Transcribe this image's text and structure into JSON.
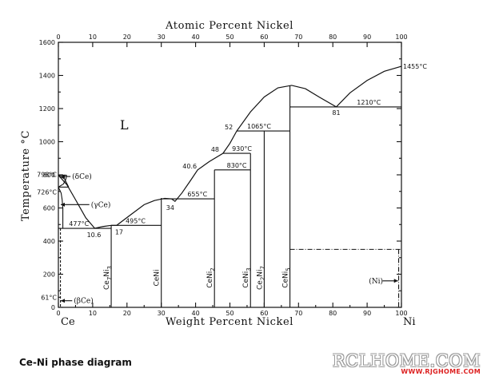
{
  "chart_data": {
    "type": "phase-diagram",
    "title": "",
    "x_top_label": "Atomic Percent Nickel",
    "x_top_ticks": [
      0,
      10,
      20,
      30,
      40,
      50,
      60,
      70,
      80,
      90,
      100
    ],
    "xlabel": "Weight Percent Nickel",
    "x_ticks": [
      0,
      10,
      20,
      30,
      40,
      50,
      60,
      70,
      80,
      90,
      100
    ],
    "ylabel": "Temperature °C",
    "y_ticks": [
      0,
      200,
      400,
      600,
      800,
      1000,
      1200,
      1400,
      1600
    ],
    "xlim": [
      0,
      100
    ],
    "ylim": [
      0,
      1600
    ],
    "grid": false,
    "endpoint_left": "Ce",
    "endpoint_right": "Ni",
    "liquid_label": "L",
    "liquidus": [
      [
        0,
        798
      ],
      [
        2.5,
        740
      ],
      [
        5,
        650
      ],
      [
        8,
        540
      ],
      [
        10.6,
        477
      ],
      [
        13,
        488
      ],
      [
        15.4,
        495
      ],
      [
        17,
        495
      ],
      [
        21,
        558
      ],
      [
        25,
        620
      ],
      [
        28,
        645
      ],
      [
        31,
        658
      ],
      [
        33,
        655
      ],
      [
        34,
        640
      ],
      [
        36,
        690
      ],
      [
        38.5,
        765
      ],
      [
        40.6,
        830
      ],
      [
        44,
        880
      ],
      [
        48,
        930
      ],
      [
        50,
        990
      ],
      [
        52,
        1065
      ],
      [
        56,
        1180
      ],
      [
        60,
        1270
      ],
      [
        64,
        1325
      ],
      [
        68,
        1340
      ],
      [
        72,
        1320
      ],
      [
        76,
        1270
      ],
      [
        81,
        1210
      ],
      [
        85,
        1295
      ],
      [
        90,
        1370
      ],
      [
        95,
        1425
      ],
      [
        100,
        1455
      ]
    ],
    "phase_boundaries": [
      {
        "points": [
          [
            0,
            798
          ],
          [
            1.8,
            775
          ],
          [
            3,
            726
          ]
        ]
      },
      {
        "points": [
          [
            0,
            726
          ],
          [
            0.8,
            690
          ],
          [
            1.1,
            650
          ],
          [
            1.3,
            600
          ],
          [
            1.3,
            477
          ]
        ]
      },
      {
        "points": [
          [
            0,
            726
          ],
          [
            1.5,
            745
          ],
          [
            2.2,
            775
          ],
          [
            2.4,
            798
          ]
        ]
      }
    ],
    "invariant_lines": [
      {
        "y": 798,
        "x_from": 0,
        "x_to": 2.4,
        "label": "798°C"
      },
      {
        "y": 726,
        "x_from": 0,
        "x_to": 3,
        "label": "726°C"
      },
      {
        "y": 477,
        "x_from": 0,
        "x_to": 15.4,
        "label": "477°C"
      },
      {
        "y": 495,
        "x_from": 15.4,
        "x_to": 30,
        "label": "495°C"
      },
      {
        "y": 655,
        "x_from": 30,
        "x_to": 45.5,
        "label": "655°C"
      },
      {
        "y": 830,
        "x_from": 45.5,
        "x_to": 56,
        "label": "830°C"
      },
      {
        "y": 930,
        "x_from": 48,
        "x_to": 56,
        "label": "930°C"
      },
      {
        "y": 1065,
        "x_from": 52,
        "x_to": 67.5,
        "label": "1065°C"
      },
      {
        "y": 1210,
        "x_from": 67.5,
        "x_to": 100,
        "label": "1210°C"
      }
    ],
    "compounds": [
      {
        "x": 15.4,
        "y_top": 495,
        "label_main": "Ce",
        "label_sub": "7",
        "label_main2": "Ni",
        "label_sub2": "3"
      },
      {
        "x": 30,
        "y_top": 660,
        "label_main": "CeNi",
        "label_sub": "",
        "label_main2": "",
        "label_sub2": ""
      },
      {
        "x": 45.5,
        "y_top": 830,
        "label_main": "CeNi",
        "label_sub": "2",
        "label_main2": "",
        "label_sub2": ""
      },
      {
        "x": 56,
        "y_top": 930,
        "label_main": "CeNi",
        "label_sub": "3",
        "label_main2": "",
        "label_sub2": ""
      },
      {
        "x": 60,
        "y_top": 1065,
        "label_main": "Ce",
        "label_sub": "2",
        "label_main2": "Ni",
        "label_sub2": "7"
      },
      {
        "x": 67.5,
        "y_top": 1340,
        "label_main": "CeNi",
        "label_sub": "5",
        "label_main2": "",
        "label_sub2": ""
      }
    ],
    "composition_labels": [
      {
        "x": 10.6,
        "y": 477,
        "text": "10.6"
      },
      {
        "x": 17,
        "y": 495,
        "text": "17"
      },
      {
        "x": 34,
        "y": 640,
        "text": "34"
      },
      {
        "x": 40.6,
        "y": 830,
        "text": "40.6"
      },
      {
        "x": 48,
        "y": 930,
        "text": "48"
      },
      {
        "x": 52,
        "y": 1065,
        "text": "52"
      },
      {
        "x": 81,
        "y": 1210,
        "text": "81"
      }
    ],
    "ni_boundary_temp": 350,
    "extra_temp_label": {
      "y": 61,
      "text": "61°C"
    },
    "phase_labels": {
      "delta_ce": "(δCe)",
      "gamma_ce": "(γCe)",
      "beta_ce": "(βCe)",
      "ni": "(Ni)"
    },
    "left_endmember_temps": {
      "delta_ce_arrow": 790,
      "gamma_ce_arrow": 620,
      "beta_ce_arrow": 40,
      "ni_arrow": 160
    },
    "melting_point_label": "1455°C"
  },
  "caption": "Ce-Ni phase diagram",
  "watermark": {
    "main": "RCLHOME.COM",
    "sub": "WWW.RJGHOME.COM"
  }
}
